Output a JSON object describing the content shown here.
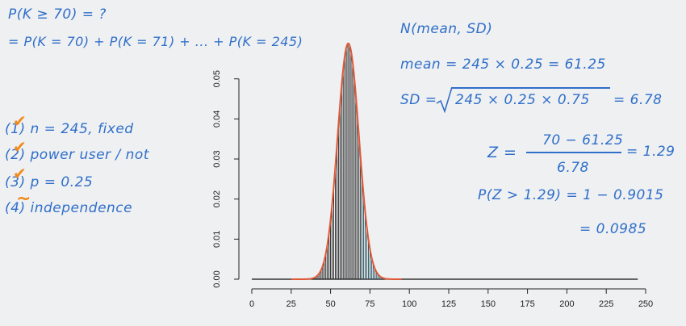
{
  "notes": {
    "left_top": [
      "P(K ≥ 70) = ?",
      "= P(K = 70) + P(K = 71) + ... + P(K = 245)"
    ],
    "conditions": [
      {
        "num": "(1)",
        "text": "n = 245, fixed",
        "mark": "✔"
      },
      {
        "num": "(2)",
        "text": "power user / not",
        "mark": "✔"
      },
      {
        "num": "(3)",
        "text": "p = 0.25",
        "mark": "✔"
      },
      {
        "num": "(4)",
        "text": "independence",
        "mark": "~"
      }
    ],
    "normal": "N(mean, SD)",
    "mean_line": "mean = 245 × 0.25 = 61.25",
    "sd_label": "SD =",
    "sd_radicand": "245 × 0.25 × 0.75",
    "sd_result": "= 6.78",
    "z_label": "Z =",
    "z_numerator": "70 − 61.25",
    "z_denominator": "6.78",
    "z_result": "= 1.29",
    "prob_line": "P(Z > 1.29) = 1 − 0.9015",
    "prob_result": "= 0.0985"
  },
  "colors": {
    "ink": "#2f6fc9",
    "check": "#f08a1a",
    "curve": "#e05a3a",
    "bars_left": "#1a1a1a",
    "bars_right": "#1f4f5c"
  },
  "chart_data": {
    "type": "bar",
    "distribution": "binomial",
    "n": 245,
    "p": 0.25,
    "shaded_from": 70,
    "overlay": "normal curve",
    "xticks": [
      0,
      25,
      50,
      75,
      100,
      125,
      150,
      175,
      200,
      225,
      250
    ],
    "yticks": [
      "0.00",
      "0.01",
      "0.02",
      "0.03",
      "0.04",
      "0.05"
    ],
    "xlim": [
      0,
      250
    ],
    "ylim": [
      0,
      0.058
    ],
    "title": "",
    "xlabel": "",
    "ylabel": ""
  }
}
